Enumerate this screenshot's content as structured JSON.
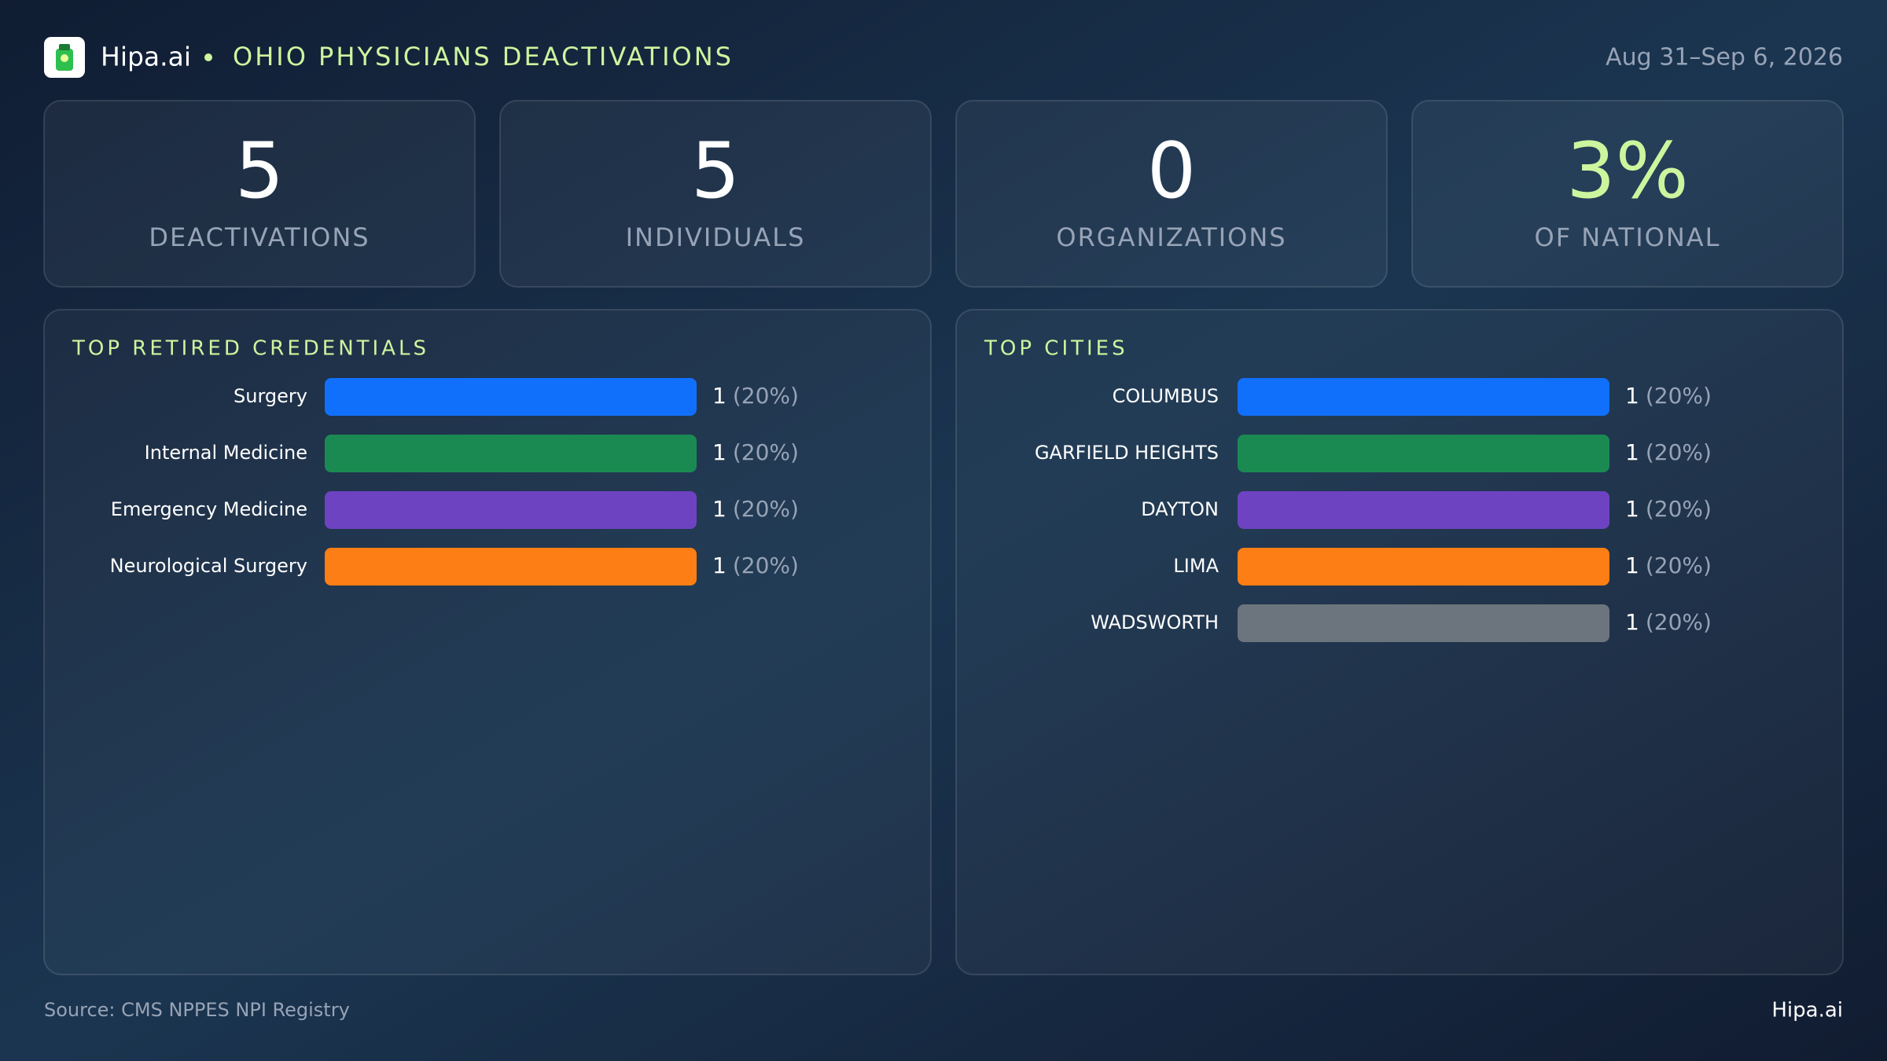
{
  "header": {
    "brand": "Hipa.ai",
    "title": "OHIO PHYSICIANS DEACTIVATIONS",
    "date": "Aug 31–Sep 6, 2026"
  },
  "stats": [
    {
      "value": "5",
      "label": "DEACTIVATIONS"
    },
    {
      "value": "5",
      "label": "INDIVIDUALS"
    },
    {
      "value": "0",
      "label": "ORGANIZATIONS"
    },
    {
      "value": "3%",
      "label": "OF NATIONAL"
    }
  ],
  "chart_data": [
    {
      "type": "hbar",
      "title": "TOP RETIRED CREDENTIALS",
      "categories": [
        "Surgery",
        "Internal Medicine",
        "Emergency Medicine",
        "Neurological Surgery"
      ],
      "values": [
        1,
        1,
        1,
        1
      ],
      "share_labels": [
        "(20%)",
        "(20%)",
        "(20%)",
        "(20%)"
      ],
      "colors": [
        "#1170fb",
        "#1b8a52",
        "#6e43c1",
        "#fd7e14"
      ]
    },
    {
      "type": "hbar",
      "title": "TOP CITIES",
      "categories": [
        "COLUMBUS",
        "GARFIELD HEIGHTS",
        "DAYTON",
        "LIMA",
        "WADSWORTH"
      ],
      "values": [
        1,
        1,
        1,
        1,
        1
      ],
      "share_labels": [
        "(20%)",
        "(20%)",
        "(20%)",
        "(20%)",
        "(20%)"
      ],
      "colors": [
        "#1170fb",
        "#1b8a52",
        "#6e43c1",
        "#fd7e14",
        "#6c757d"
      ]
    }
  ],
  "footer": {
    "source": "Source: CMS NPPES NPI Registry",
    "brand": "Hipa.ai"
  }
}
